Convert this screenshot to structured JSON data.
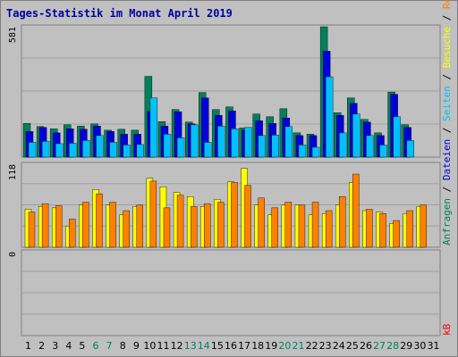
{
  "title": "Tages-Statistik im Monat April 2019",
  "colors": {
    "background": "#c0c0c0",
    "title": "#0000a0",
    "hits": "#00805c",
    "files": "#0000d8",
    "pages": "#00c0ff",
    "visits": "#ffff00",
    "sites": "#ff8000",
    "kbytes": "#ff0000",
    "weekend": "#00805c",
    "weekday": "#000000"
  },
  "chart_data": [
    {
      "type": "bar",
      "panel": "top",
      "ymax_label": "581",
      "ylim": [
        0,
        581
      ],
      "categories": [
        "1",
        "2",
        "3",
        "4",
        "5",
        "6",
        "7",
        "8",
        "9",
        "10",
        "11",
        "12",
        "13",
        "14",
        "15",
        "16",
        "17",
        "18",
        "19",
        "20",
        "21",
        "22",
        "23",
        "24",
        "25",
        "26",
        "27",
        "28",
        "29",
        "30",
        "31"
      ],
      "series": [
        {
          "name": "Anfragen",
          "values": [
            150,
            136,
            126,
            144,
            138,
            148,
            120,
            124,
            120,
            360,
            158,
            212,
            156,
            288,
            212,
            224,
            130,
            192,
            180,
            216,
            108,
            102,
            581,
            198,
            264,
            168,
            108,
            290,
            144,
            null,
            null
          ]
        },
        {
          "name": "Dateien",
          "values": [
            114,
            132,
            108,
            126,
            124,
            138,
            114,
            102,
            102,
            204,
            138,
            202,
            148,
            264,
            186,
            206,
            120,
            162,
            150,
            174,
            96,
            96,
            472,
            186,
            240,
            156,
            96,
            280,
            132,
            null,
            null
          ]
        },
        {
          "name": "Seiten",
          "values": [
            66,
            70,
            60,
            62,
            74,
            96,
            66,
            54,
            56,
            264,
            102,
            86,
            144,
            66,
            138,
            126,
            132,
            96,
            98,
            136,
            54,
            44,
            358,
            108,
            192,
            96,
            54,
            180,
            74,
            null,
            null
          ]
        }
      ],
      "days_weekend": [
        6,
        7,
        13,
        14,
        20,
        21,
        27,
        28
      ]
    },
    {
      "type": "bar",
      "panel": "middle",
      "ymax_label": "118",
      "ylim": [
        0,
        118
      ],
      "series": [
        {
          "name": "Besuche",
          "values": [
            54,
            58,
            56,
            30,
            60,
            82,
            60,
            46,
            58,
            98,
            86,
            78,
            72,
            58,
            68,
            93,
            112,
            60,
            46,
            60,
            60,
            46,
            48,
            60,
            92,
            52,
            50,
            34,
            48,
            58,
            null
          ]
        },
        {
          "name": "Rechner",
          "values": [
            50,
            62,
            59,
            40,
            64,
            76,
            64,
            52,
            60,
            94,
            56,
            74,
            58,
            62,
            64,
            92,
            88,
            70,
            56,
            64,
            60,
            64,
            52,
            72,
            104,
            54,
            48,
            38,
            52,
            60,
            null
          ]
        }
      ]
    },
    {
      "type": "bar",
      "panel": "bottom",
      "ymax_label": "0",
      "ylim": [
        0,
        1
      ],
      "series": [
        {
          "name": "kB",
          "values": [
            0,
            0,
            0,
            0,
            0,
            0,
            0,
            0,
            0,
            0,
            0,
            0,
            0,
            0,
            0,
            0,
            0,
            0,
            0,
            0,
            0,
            0,
            0,
            0,
            0,
            0,
            0,
            0,
            0,
            0,
            0
          ]
        }
      ]
    }
  ],
  "legend": {
    "right_top": [
      "Anfragen",
      "Dateien",
      "Seiten",
      "Besuche",
      "Rechner"
    ],
    "right_top_separator": "/",
    "right_bottom": "kB"
  }
}
